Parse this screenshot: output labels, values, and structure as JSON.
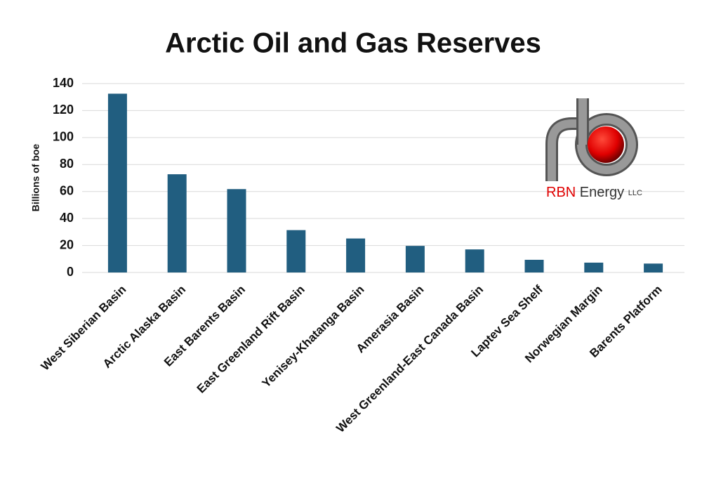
{
  "chart_data": {
    "type": "bar",
    "title": "Arctic Oil and Gas Reserves",
    "y_label": "Billions of boe",
    "categories": [
      "West Siberian Basin",
      "Arctic Alaska Basin",
      "East Barents Basin",
      "East Greenland Rift Basin",
      "Yenisey-Khatanga Basin",
      "Amerasia Basin",
      "West Greenland-East Canada Basin",
      "Laptev Sea Shelf",
      "Norwegian Margin",
      "Barents Platform"
    ],
    "values": [
      132.5,
      72.8,
      61.8,
      31.4,
      25.2,
      19.7,
      17.1,
      9.4,
      7.3,
      6.6
    ],
    "color": "#215e80",
    "ylim": [
      0,
      140
    ],
    "yticks": [
      0,
      20,
      40,
      60,
      80,
      100,
      120,
      140
    ],
    "grid": true
  },
  "logo": {
    "brand": "RBN",
    "name": "Energy",
    "suffix": "LLC"
  }
}
